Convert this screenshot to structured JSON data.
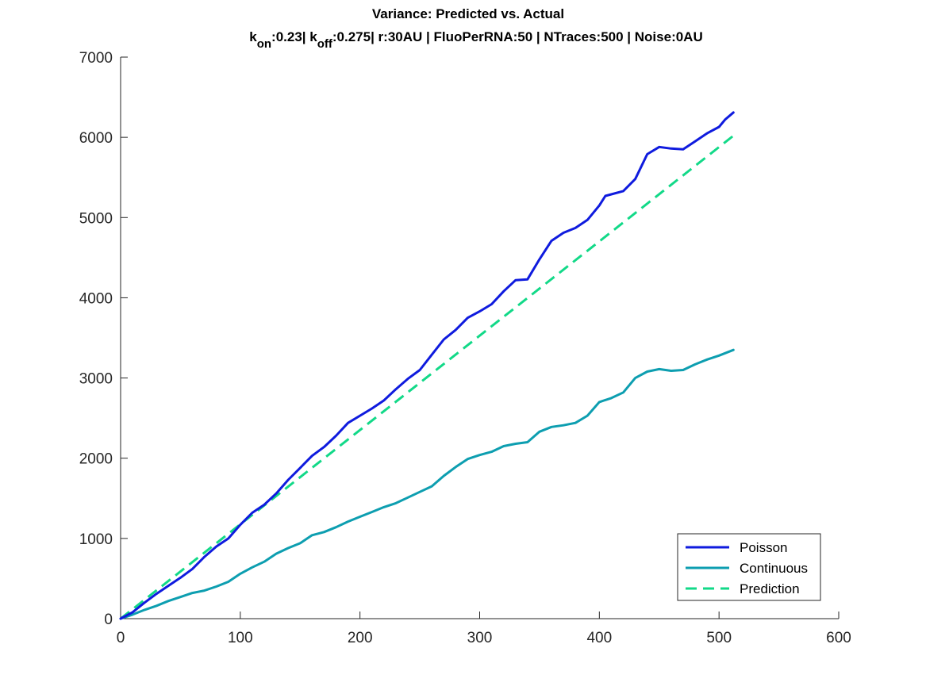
{
  "figure": {
    "title_line1": "Variance: Predicted vs. Actual",
    "title_line2": [
      {
        "text": "k",
        "sub": false
      },
      {
        "text": "on",
        "sub": true
      },
      {
        "text": ":0.23| k",
        "sub": false
      },
      {
        "text": "off",
        "sub": true
      },
      {
        "text": ":0.275| r:30AU | FluoPerRNA:50 | NTraces:500 | Noise:0AU",
        "sub": false
      }
    ]
  },
  "chart_data": {
    "type": "line",
    "title": "Variance: Predicted vs. Actual",
    "subtitle": "k_on:0.23| k_off:0.275| r:30AU | FluoPerRNA:50 | NTraces:500 | Noise:0AU",
    "xlabel": "",
    "ylabel": "",
    "xlim": [
      0,
      600
    ],
    "ylim": [
      0,
      7000
    ],
    "xticks": [
      0,
      100,
      200,
      300,
      400,
      500,
      600
    ],
    "yticks": [
      0,
      1000,
      2000,
      3000,
      4000,
      5000,
      6000,
      7000
    ],
    "grid": false,
    "legend_position": "bottom-right",
    "series": [
      {
        "name": "Poisson",
        "color": "#0f1bde",
        "style": "solid",
        "x": [
          0,
          10,
          20,
          30,
          40,
          50,
          60,
          70,
          80,
          90,
          100,
          110,
          120,
          130,
          140,
          150,
          160,
          170,
          180,
          190,
          200,
          210,
          220,
          230,
          240,
          250,
          260,
          270,
          280,
          290,
          300,
          310,
          320,
          330,
          340,
          350,
          360,
          370,
          380,
          390,
          400,
          405,
          410,
          420,
          430,
          440,
          450,
          460,
          470,
          480,
          490,
          500,
          505,
          512
        ],
        "values": [
          0,
          80,
          200,
          310,
          410,
          510,
          620,
          770,
          900,
          1000,
          1170,
          1320,
          1420,
          1560,
          1730,
          1880,
          2030,
          2140,
          2280,
          2440,
          2530,
          2620,
          2720,
          2860,
          2990,
          3100,
          3290,
          3480,
          3600,
          3750,
          3830,
          3920,
          4080,
          4220,
          4230,
          4480,
          4710,
          4810,
          4870,
          4970,
          5150,
          5270,
          5290,
          5330,
          5480,
          5790,
          5880,
          5860,
          5850,
          5950,
          6050,
          6130,
          6220,
          6310
        ]
      },
      {
        "name": "Continuous",
        "color": "#0d9eb0",
        "style": "solid",
        "x": [
          0,
          10,
          20,
          30,
          40,
          50,
          60,
          70,
          80,
          90,
          100,
          110,
          120,
          130,
          140,
          150,
          160,
          170,
          180,
          190,
          200,
          210,
          220,
          230,
          240,
          250,
          260,
          270,
          280,
          290,
          300,
          310,
          320,
          330,
          340,
          350,
          360,
          370,
          380,
          390,
          400,
          410,
          420,
          430,
          440,
          450,
          460,
          470,
          480,
          490,
          500,
          512
        ],
        "values": [
          0,
          50,
          110,
          160,
          220,
          270,
          320,
          350,
          400,
          460,
          560,
          640,
          710,
          810,
          880,
          940,
          1040,
          1080,
          1140,
          1210,
          1270,
          1330,
          1390,
          1440,
          1510,
          1580,
          1650,
          1780,
          1890,
          1990,
          2040,
          2080,
          2150,
          2180,
          2200,
          2330,
          2390,
          2410,
          2440,
          2530,
          2700,
          2750,
          2820,
          3000,
          3080,
          3110,
          3090,
          3100,
          3170,
          3230,
          3280,
          3350
        ]
      },
      {
        "name": "Prediction",
        "color": "#12d988",
        "style": "dashed",
        "x": [
          0,
          512
        ],
        "values": [
          0,
          6020
        ]
      }
    ]
  }
}
